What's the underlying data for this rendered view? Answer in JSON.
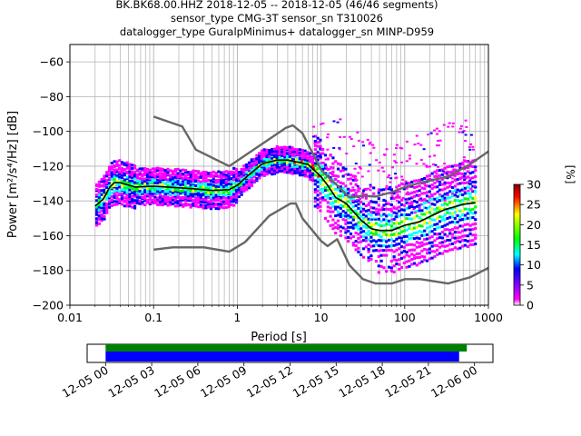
{
  "chart_data": [
    {
      "type": "heatmap",
      "title": [
        "BK.BK68.00.HHZ   2018-12-05 -- 2018-12-05  (46/46 segments)",
        "sensor_type CMG-3T sensor_sn T310026",
        "datalogger_type GuralpMinimus+ datalogger_sn MINP-D959"
      ],
      "xlabel": "Period [s]",
      "ylabel": "Power [m²/s⁴/Hz] [dB]",
      "x_scale": "log",
      "xlim": [
        0.01,
        1000
      ],
      "ylim": [
        -200,
        -50
      ],
      "x_ticks": [
        {
          "value": 0.01,
          "label": "0.01"
        },
        {
          "value": 0.1,
          "label": "0.1"
        },
        {
          "value": 1,
          "label": "1"
        },
        {
          "value": 10,
          "label": "10"
        },
        {
          "value": 100,
          "label": "100"
        },
        {
          "value": 1000,
          "label": "1000"
        }
      ],
      "y_ticks": [
        -60,
        -80,
        -100,
        -120,
        -140,
        -160,
        -180,
        -200
      ],
      "grid": true,
      "series": [
        {
          "kind": "reference",
          "color": "#666666",
          "points": [
            [
              0.1,
              -91.5
            ],
            [
              0.22,
              -97.2
            ],
            [
              0.32,
              -110.5
            ],
            [
              0.8,
              -120.0
            ],
            [
              3.8,
              -98.0
            ],
            [
              4.6,
              -96.5
            ],
            [
              6.0,
              -101.0
            ],
            [
              10.0,
              -122.0
            ],
            [
              12.0,
              -126.0
            ],
            [
              15.6,
              -131.0
            ],
            [
              21.9,
              -138.0
            ],
            [
              31.6,
              -137.0
            ],
            [
              45.0,
              -137.5
            ],
            [
              70.0,
              -135.0
            ],
            [
              101.0,
              -132.0
            ],
            [
              154.0,
              -129.5
            ],
            [
              328.0,
              -126.0
            ],
            [
              600.0,
              -119.0
            ],
            [
              1000.0,
              -111.5
            ]
          ]
        },
        {
          "kind": "reference",
          "color": "#666666",
          "points": [
            [
              0.1,
              -168.0
            ],
            [
              0.17,
              -166.7
            ],
            [
              0.4,
              -166.7
            ],
            [
              0.8,
              -169.2
            ],
            [
              1.24,
              -163.7
            ],
            [
              2.4,
              -148.6
            ],
            [
              4.3,
              -141.5
            ],
            [
              5.0,
              -141.4
            ],
            [
              6.0,
              -150.0
            ],
            [
              10.0,
              -163.0
            ],
            [
              12.0,
              -166.0
            ],
            [
              15.6,
              -162.0
            ],
            [
              21.9,
              -177.0
            ],
            [
              31.6,
              -185.0
            ],
            [
              45.0,
              -187.5
            ],
            [
              70.0,
              -187.5
            ],
            [
              101.0,
              -185.0
            ],
            [
              154.0,
              -185.0
            ],
            [
              328.0,
              -187.5
            ],
            [
              600.0,
              -184.0
            ],
            [
              1000.0,
              -178.5
            ]
          ]
        },
        {
          "kind": "mode",
          "color": "#000000",
          "points": [
            [
              0.02,
              -143.0
            ],
            [
              0.025,
              -139.0
            ],
            [
              0.03,
              -132.0
            ],
            [
              0.034,
              -129.5
            ],
            [
              0.04,
              -129.5
            ],
            [
              0.06,
              -132.0
            ],
            [
              0.1,
              -131.5
            ],
            [
              0.3,
              -133.0
            ],
            [
              0.5,
              -134.0
            ],
            [
              0.8,
              -133.5
            ],
            [
              1.0,
              -131.0
            ],
            [
              1.3,
              -126.0
            ],
            [
              2.0,
              -118.5
            ],
            [
              3.0,
              -116.5
            ],
            [
              4.0,
              -116.5
            ],
            [
              5.0,
              -117.5
            ],
            [
              7.0,
              -119.0
            ],
            [
              10.0,
              -126.0
            ],
            [
              12.0,
              -131.0
            ],
            [
              15.0,
              -138.0
            ],
            [
              20.0,
              -141.5
            ],
            [
              30.0,
              -151.0
            ],
            [
              40.0,
              -156.0
            ],
            [
              50.0,
              -157.0
            ],
            [
              70.0,
              -157.0
            ],
            [
              100.0,
              -154.0
            ],
            [
              150.0,
              -152.0
            ],
            [
              200.0,
              -149.0
            ],
            [
              300.0,
              -145.0
            ],
            [
              500.0,
              -142.0
            ],
            [
              700.0,
              -141.0
            ]
          ]
        }
      ],
      "colorbar": {
        "label": "[%]",
        "range": [
          0,
          30
        ],
        "ticks": [
          0,
          5,
          10,
          15,
          20,
          25,
          30
        ],
        "colors": [
          "#ffffff",
          "#ff00ff",
          "#0000ff",
          "#00ffff",
          "#00ff00",
          "#ffff00",
          "#ff0000",
          "#800000"
        ]
      }
    },
    {
      "type": "timeline",
      "x_ticks": [
        "12-05 00",
        "12-05 03",
        "12-05 06",
        "12-05 09",
        "12-05 12",
        "12-05 15",
        "12-05 18",
        "12-05 21",
        "12-06 00"
      ],
      "x_tick_hours": [
        0,
        3,
        6,
        9,
        12,
        15,
        18,
        21,
        24
      ],
      "xlim_hours": [
        -1.2,
        25.2
      ],
      "bars": [
        {
          "color": "#008000",
          "start_hour": 0,
          "end_hour": 23.5
        },
        {
          "color": "#0000ff",
          "start_hour": 0,
          "end_hour": 23.0
        }
      ]
    }
  ]
}
